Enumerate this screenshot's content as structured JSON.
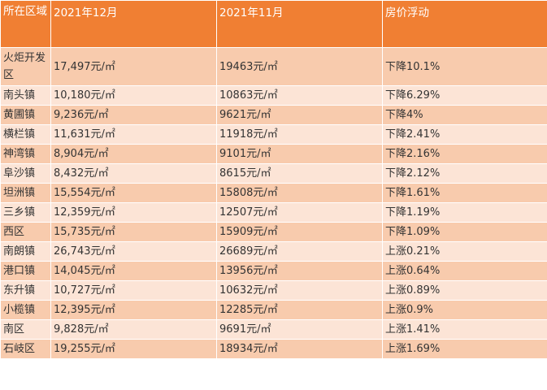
{
  "table": {
    "headers": [
      "所在区域",
      "2021年12月",
      "2021年11月",
      "房价浮动"
    ],
    "rows": [
      {
        "region": "火炬开发区",
        "dec": "17,497元/㎡",
        "nov": "19463元/㎡",
        "change": "下降10.1%"
      },
      {
        "region": "南头镇",
        "dec": "10,180元/㎡",
        "nov": "10863元/㎡",
        "change": "下降6.29%"
      },
      {
        "region": "黄圃镇",
        "dec": "9,236元/㎡",
        "nov": "9621元/㎡",
        "change": "下降4%"
      },
      {
        "region": "横栏镇",
        "dec": "11,631元/㎡",
        "nov": "11918元/㎡",
        "change": "下降2.41%"
      },
      {
        "region": "神湾镇",
        "dec": "8,904元/㎡",
        "nov": "9101元/㎡",
        "change": "下降2.16%"
      },
      {
        "region": "阜沙镇",
        "dec": "8,432元/㎡",
        "nov": "8615元/㎡",
        "change": "下降2.12%"
      },
      {
        "region": "坦洲镇",
        "dec": "15,554元/㎡",
        "nov": "15808元/㎡",
        "change": "下降1.61%"
      },
      {
        "region": "三乡镇",
        "dec": "12,359元/㎡",
        "nov": "12507元/㎡",
        "change": "下降1.19%"
      },
      {
        "region": "西区",
        "dec": "15,735元/㎡",
        "nov": "15909元/㎡",
        "change": "下降1.09%"
      },
      {
        "region": "南朗镇",
        "dec": "26,743元/㎡",
        "nov": "26689元/㎡",
        "change": "上涨0.21%"
      },
      {
        "region": "港口镇",
        "dec": "14,045元/㎡",
        "nov": "13956元/㎡",
        "change": "上涨0.64%"
      },
      {
        "region": "东升镇",
        "dec": "10,727元/㎡",
        "nov": "10632元/㎡",
        "change": "上涨0.89%"
      },
      {
        "region": "小榄镇",
        "dec": "12,395元/㎡",
        "nov": "12285元/㎡",
        "change": "上涨0.9%"
      },
      {
        "region": "南区",
        "dec": "9,828元/㎡",
        "nov": "9691元/㎡",
        "change": "上涨1.41%"
      },
      {
        "region": "石岐区",
        "dec": "19,255元/㎡",
        "nov": "18934元/㎡",
        "change": "上涨1.69%"
      }
    ]
  },
  "colors": {
    "header_bg": "#f07f33",
    "row_odd": "#f8cbad",
    "row_even": "#fce4d6"
  }
}
